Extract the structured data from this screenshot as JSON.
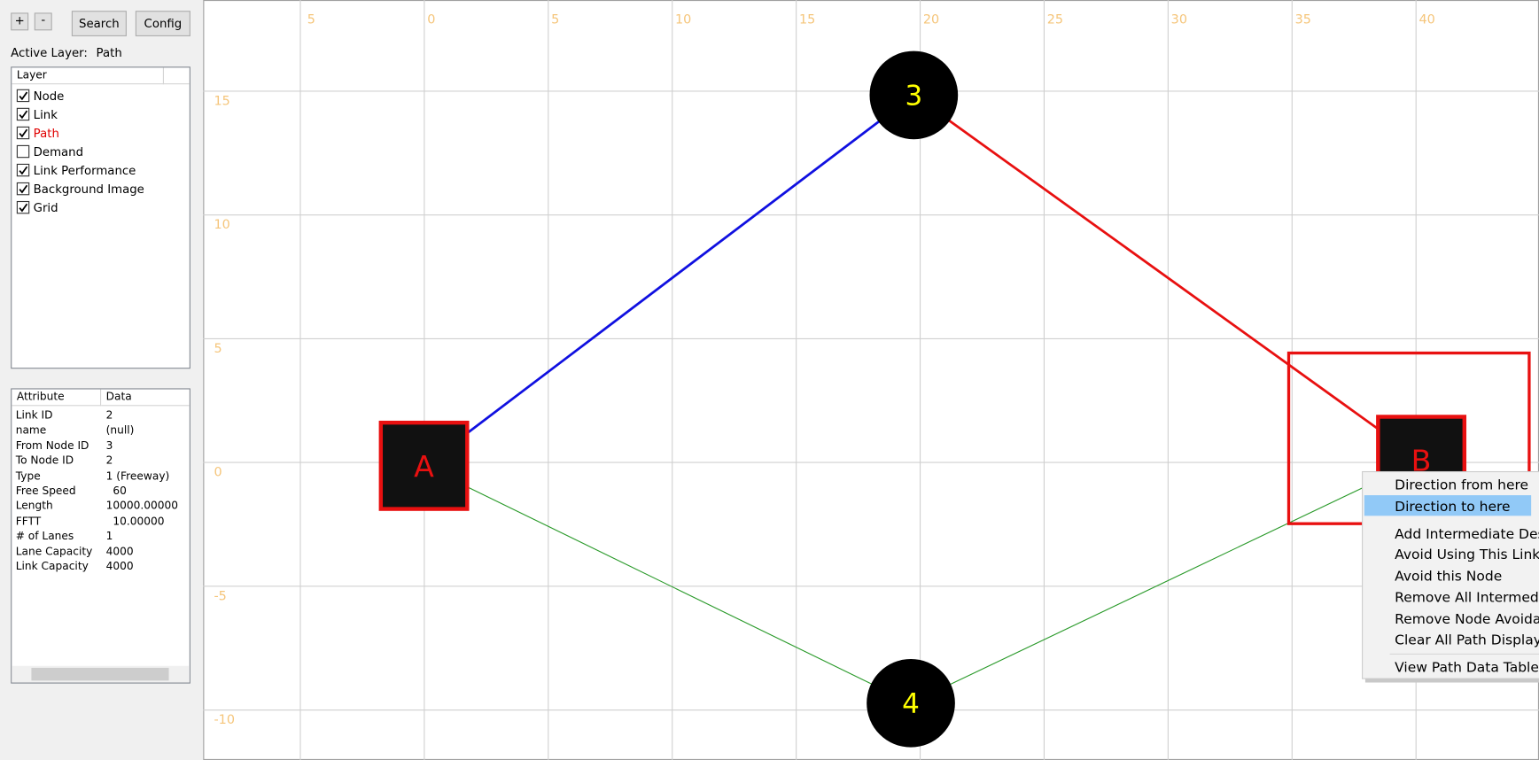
{
  "toolbar": {
    "buttons": [
      "+",
      "-",
      "Search",
      "Config"
    ]
  },
  "active_layer": {
    "label": "Active Layer:",
    "value": "Path"
  },
  "layer_panel": {
    "header": "Layer",
    "items": [
      {
        "label": "Node",
        "checked": true
      },
      {
        "label": "Link",
        "checked": true
      },
      {
        "label": "Path",
        "checked": true
      },
      {
        "label": "Demand",
        "checked": false
      },
      {
        "label": "Link Performance",
        "checked": true
      },
      {
        "label": "Background Image",
        "checked": true
      },
      {
        "label": "Grid",
        "checked": true
      }
    ]
  },
  "attribute_table": {
    "headers": [
      "Attribute",
      "Data"
    ],
    "rows": [
      [
        "Link ID",
        "2"
      ],
      [
        "name",
        "(null)"
      ],
      [
        "From Node ID",
        "3"
      ],
      [
        "To Node ID",
        "2"
      ],
      [
        "Type",
        "1 (Freeway)"
      ],
      [
        "Free Speed",
        "  60"
      ],
      [
        "Length",
        "10000.00000"
      ],
      [
        "FFTT",
        "  10.00000"
      ],
      [
        "# of Lanes",
        "1"
      ],
      [
        "Lane Capacity",
        "4000"
      ],
      [
        "Link Capacity",
        "4000"
      ]
    ]
  },
  "canvas": {
    "x_labels": [
      "5",
      "0",
      "5",
      "10",
      "15",
      "20",
      "25",
      "30",
      "35",
      "40"
    ],
    "y_labels": [
      "15",
      "10",
      "5",
      "0",
      "-5",
      "-10"
    ],
    "nodes": [
      {
        "label": "A",
        "shape": "square"
      },
      {
        "label": "B",
        "shape": "square"
      },
      {
        "label": "3",
        "shape": "circle"
      },
      {
        "label": "4",
        "shape": "circle"
      }
    ]
  },
  "context_menu": {
    "items": [
      {
        "label": "Direction from here",
        "highlighted": false
      },
      {
        "label": "Direction to here",
        "highlighted": true
      },
      {
        "label": "Add Intermediate Dest",
        "highlighted": false
      },
      {
        "label": "Avoid Using This Link",
        "highlighted": false
      },
      {
        "label": "Avoid this Node",
        "highlighted": false
      },
      {
        "label": "Remove All Intermedia",
        "highlighted": false
      },
      {
        "label": "Remove Node Avoidan",
        "highlighted": false
      },
      {
        "label": "Clear All Path Display",
        "highlighted": false
      },
      {
        "label": "View Path Data Table a",
        "highlighted": false
      }
    ]
  }
}
